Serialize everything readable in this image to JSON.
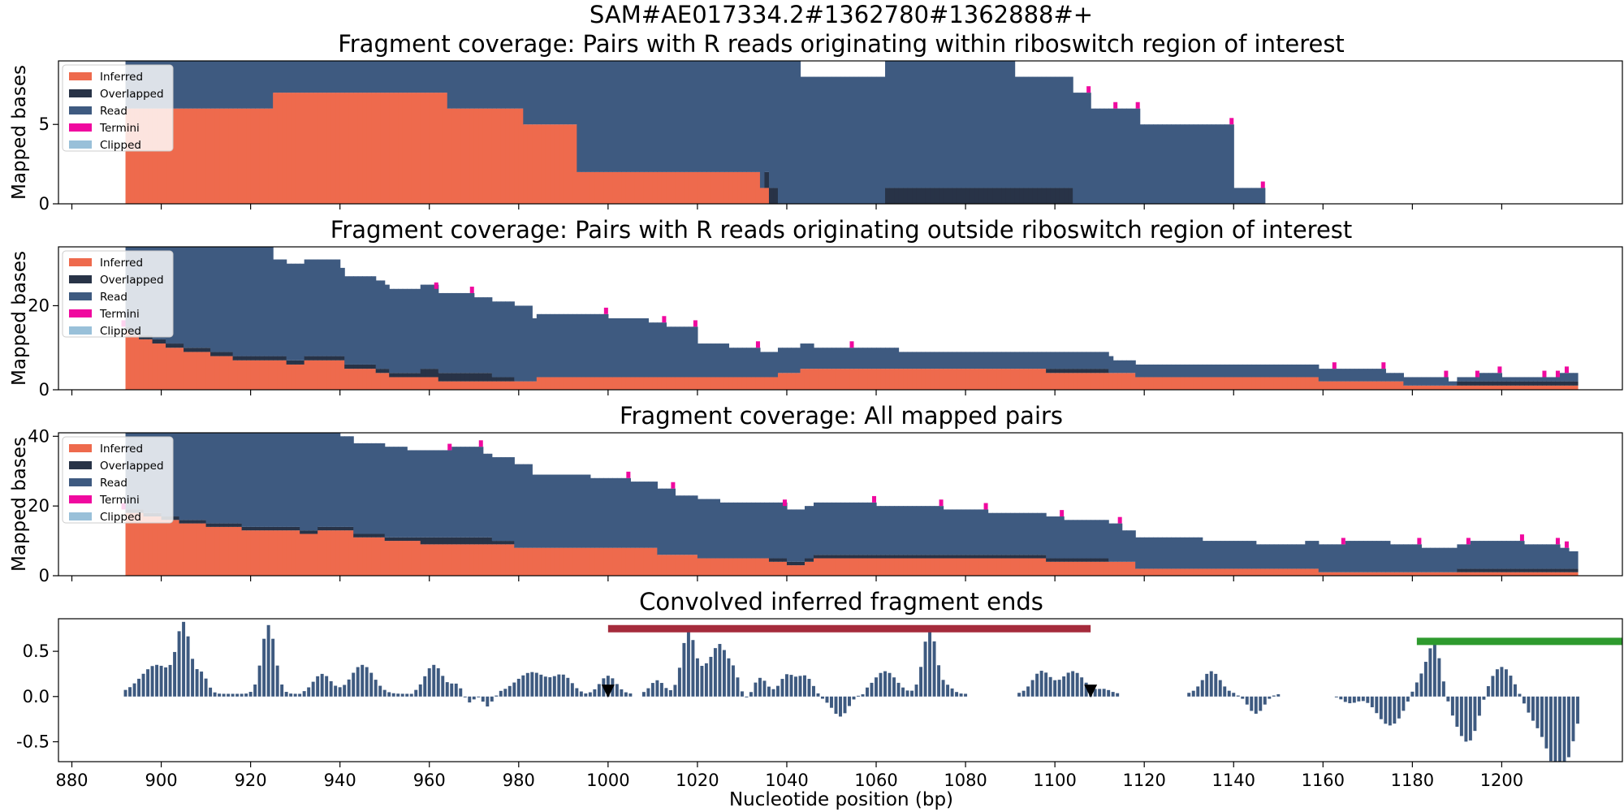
{
  "figure": {
    "suptitle": "SAM#AE017334.2#1362780#1362888#+",
    "xlabel": "Nucleotide position (bp)",
    "xticks": [
      880,
      900,
      920,
      940,
      960,
      980,
      1000,
      1020,
      1040,
      1060,
      1080,
      1100,
      1120,
      1140,
      1160,
      1180,
      1200
    ],
    "xlim": [
      877,
      1227
    ]
  },
  "colors": {
    "inferred": "#ee6a4d",
    "overlapped": "#283347",
    "read": "#3e5a80",
    "termini": "#f0099f",
    "clipped": "#99c0d9",
    "conv_bar": "#3e5a80",
    "region_red": "#a52b3c",
    "region_green": "#2e9a2e"
  },
  "legend": [
    "Inferred",
    "Overlapped",
    "Read",
    "Termini",
    "Clipped"
  ],
  "chart_data": [
    {
      "type": "area",
      "title": "Fragment coverage: Pairs with R reads originating within riboswitch region of interest",
      "ylabel": "Mapped bases",
      "ylim": [
        0,
        9
      ],
      "yticks": [
        0,
        5
      ],
      "legend_position": "upper-left",
      "inferred": [
        [
          892,
          6
        ],
        [
          925,
          7
        ],
        [
          964,
          6
        ],
        [
          981,
          5
        ],
        [
          993,
          2
        ],
        [
          1034,
          1
        ],
        [
          1036,
          0
        ]
      ],
      "overlapped": [
        [
          892,
          0
        ],
        [
          1033,
          0
        ],
        [
          1035,
          1
        ],
        [
          1038,
          0
        ],
        [
          1045,
          0
        ],
        [
          1057,
          0
        ],
        [
          1062,
          1
        ],
        [
          1104,
          0
        ]
      ],
      "read": [
        [
          892,
          7
        ],
        [
          913,
          7
        ],
        [
          968,
          8
        ],
        [
          1005,
          9
        ],
        [
          1032,
          9
        ],
        [
          1043,
          8
        ],
        [
          1091,
          7
        ],
        [
          1108,
          6
        ],
        [
          1114,
          6
        ],
        [
          1119,
          5
        ],
        [
          1140,
          1
        ],
        [
          1147,
          0
        ]
      ],
      "termini_at": [
        968,
        1005,
        1010,
        1035,
        1043,
        1091,
        1108,
        1114,
        1119,
        1140,
        1147
      ]
    },
    {
      "type": "area",
      "title": "Fragment coverage: Pairs with R reads originating outside riboswitch region of interest",
      "ylabel": "Mapped bases",
      "ylim": [
        0,
        34
      ],
      "yticks": [
        0,
        20
      ],
      "legend_position": "upper-left",
      "inferred": [
        [
          892,
          14
        ],
        [
          893,
          13
        ],
        [
          895,
          12
        ],
        [
          898,
          11
        ],
        [
          901,
          10
        ],
        [
          905,
          9
        ],
        [
          911,
          8
        ],
        [
          916,
          7
        ],
        [
          928,
          6
        ],
        [
          932,
          7
        ],
        [
          941,
          5
        ],
        [
          948,
          4
        ],
        [
          951,
          3
        ],
        [
          958,
          3
        ],
        [
          962,
          2
        ],
        [
          974,
          2
        ],
        [
          979,
          2
        ],
        [
          984,
          3
        ],
        [
          1011,
          3
        ],
        [
          1020,
          3
        ],
        [
          1038,
          4
        ],
        [
          1043,
          5
        ],
        [
          1058,
          5
        ],
        [
          1088,
          5
        ],
        [
          1098,
          4
        ],
        [
          1118,
          3
        ],
        [
          1138,
          3
        ],
        [
          1159,
          2
        ],
        [
          1178,
          1
        ],
        [
          1200,
          1
        ],
        [
          1217,
          1
        ],
        [
          1218,
          0
        ]
      ],
      "overlapped": [
        [
          892,
          1
        ],
        [
          935,
          1
        ],
        [
          947,
          1
        ],
        [
          958,
          2
        ],
        [
          970,
          2
        ],
        [
          974,
          1
        ],
        [
          979,
          0
        ],
        [
          1004,
          0
        ],
        [
          1098,
          1
        ],
        [
          1112,
          0
        ],
        [
          1186,
          0
        ],
        [
          1190,
          1
        ],
        [
          1200,
          1
        ],
        [
          1217,
          1
        ],
        [
          1218,
          0
        ]
      ],
      "read": [
        [
          892,
          31
        ],
        [
          895,
          29
        ],
        [
          900,
          27
        ],
        [
          905,
          25
        ],
        [
          912,
          26
        ],
        [
          925,
          23
        ],
        [
          940,
          21
        ],
        [
          950,
          20
        ],
        [
          962,
          19
        ],
        [
          970,
          18
        ],
        [
          983,
          15
        ],
        [
          1000,
          14
        ],
        [
          1009,
          13
        ],
        [
          1013,
          12
        ],
        [
          1020,
          8
        ],
        [
          1027,
          7
        ],
        [
          1034,
          6
        ],
        [
          1046,
          5
        ],
        [
          1055,
          5
        ],
        [
          1065,
          4
        ],
        [
          1079,
          4
        ],
        [
          1096,
          4
        ],
        [
          1113,
          3
        ],
        [
          1139,
          3
        ],
        [
          1154,
          3
        ],
        [
          1163,
          3
        ],
        [
          1174,
          2
        ],
        [
          1185,
          2
        ],
        [
          1188,
          1
        ],
        [
          1195,
          2
        ],
        [
          1200,
          1
        ],
        [
          1210,
          1
        ],
        [
          1213,
          2
        ],
        [
          1215,
          2
        ],
        [
          1217,
          0
        ]
      ],
      "termini_at": [
        892,
        905,
        912,
        925,
        962,
        970,
        1000,
        1013,
        1020,
        1034,
        1055,
        1163,
        1174,
        1188,
        1195,
        1200,
        1210,
        1213,
        1215
      ]
    },
    {
      "type": "area",
      "title": "Fragment coverage: All mapped pairs",
      "ylabel": "Mapped bases",
      "ylim": [
        0,
        41
      ],
      "yticks": [
        0,
        20,
        40
      ],
      "legend_position": "upper-left",
      "inferred": [
        [
          892,
          18
        ],
        [
          896,
          17
        ],
        [
          900,
          16
        ],
        [
          904,
          15
        ],
        [
          910,
          14
        ],
        [
          918,
          13
        ],
        [
          931,
          12
        ],
        [
          935,
          13
        ],
        [
          943,
          11
        ],
        [
          950,
          10
        ],
        [
          958,
          9
        ],
        [
          973,
          9
        ],
        [
          979,
          8
        ],
        [
          1011,
          6
        ],
        [
          1020,
          5
        ],
        [
          1036,
          4
        ],
        [
          1040,
          3
        ],
        [
          1044,
          4
        ],
        [
          1046,
          5
        ],
        [
          1058,
          5
        ],
        [
          1087,
          5
        ],
        [
          1098,
          4
        ],
        [
          1118,
          2
        ],
        [
          1138,
          2
        ],
        [
          1159,
          1
        ],
        [
          1178,
          1
        ],
        [
          1200,
          1
        ],
        [
          1217,
          1
        ],
        [
          1218,
          0
        ]
      ],
      "overlapped": [
        [
          892,
          1
        ],
        [
          935,
          1
        ],
        [
          947,
          1
        ],
        [
          958,
          2
        ],
        [
          970,
          2
        ],
        [
          974,
          1
        ],
        [
          979,
          0
        ],
        [
          1004,
          0
        ],
        [
          1036,
          1
        ],
        [
          1040,
          1
        ],
        [
          1062,
          1
        ],
        [
          1098,
          1
        ],
        [
          1112,
          0
        ],
        [
          1186,
          0
        ],
        [
          1190,
          1
        ],
        [
          1200,
          1
        ],
        [
          1217,
          1
        ],
        [
          1218,
          0
        ]
      ],
      "read": [
        [
          892,
          38
        ],
        [
          895,
          37
        ],
        [
          898,
          35
        ],
        [
          903,
          33
        ],
        [
          915,
          31
        ],
        [
          925,
          28
        ],
        [
          940,
          26
        ],
        [
          955,
          25
        ],
        [
          965,
          26
        ],
        [
          972,
          24
        ],
        [
          983,
          21
        ],
        [
          996,
          20
        ],
        [
          1005,
          19
        ],
        [
          1015,
          17
        ],
        [
          1025,
          16
        ],
        [
          1040,
          15
        ],
        [
          1060,
          14
        ],
        [
          1075,
          13
        ],
        [
          1085,
          12
        ],
        [
          1102,
          11
        ],
        [
          1115,
          9
        ],
        [
          1133,
          8
        ],
        [
          1145,
          7
        ],
        [
          1156,
          8
        ],
        [
          1165,
          9
        ],
        [
          1175,
          8
        ],
        [
          1182,
          7
        ],
        [
          1193,
          8
        ],
        [
          1205,
          7
        ],
        [
          1213,
          6
        ],
        [
          1215,
          5
        ],
        [
          1217,
          0
        ]
      ],
      "termini_at": [
        892,
        898,
        903,
        925,
        965,
        972,
        1005,
        1015,
        1040,
        1060,
        1075,
        1085,
        1102,
        1115,
        1165,
        1182,
        1193,
        1205,
        1213,
        1215
      ]
    },
    {
      "type": "bar",
      "title": "Convolved inferred fragment ends",
      "ylim": [
        -0.72,
        0.86
      ],
      "yticks": [
        -0.5,
        0.0,
        0.5
      ],
      "segments": [
        {
          "start": 892,
          "end": 915,
          "peaks": [
            [
              899,
              0.32,
              3.5
            ],
            [
              905,
              0.72,
              1.5
            ],
            [
              909,
              0.22,
              1.3
            ]
          ]
        },
        {
          "start": 916,
          "end": 931,
          "peaks": [
            [
              924,
              0.76,
              1.5
            ]
          ]
        },
        {
          "start": 932,
          "end": 956,
          "peaks": [
            [
              936,
              0.22,
              2
            ],
            [
              945,
              0.32,
              2.5
            ]
          ]
        },
        {
          "start": 957,
          "end": 975,
          "peaks": [
            [
              961,
              0.32,
              2
            ],
            [
              966,
              0.1,
              1.2
            ],
            [
              969,
              -0.1,
              1
            ],
            [
              973,
              -0.14,
              1
            ]
          ]
        },
        {
          "start": 976,
          "end": 994,
          "peaks": [
            [
              983,
              0.24,
              3.5
            ],
            [
              990,
              0.18,
              2
            ]
          ]
        },
        {
          "start": 995,
          "end": 1005,
          "peaks": [
            [
              1000,
              0.2,
              1.8
            ]
          ]
        },
        {
          "start": 1008,
          "end": 1057,
          "peaks": [
            [
              1011,
              0.15,
              1.5
            ],
            [
              1018,
              0.7,
              1.5
            ],
            [
              1022,
              0.25,
              1.5
            ],
            [
              1025,
              0.5,
              1.5
            ],
            [
              1028,
              0.25,
              1.3
            ],
            [
              1031,
              -0.08,
              1.2
            ],
            [
              1034,
              0.18,
              1.5
            ],
            [
              1040,
              0.2,
              1.5
            ],
            [
              1044,
              0.2,
              1.8
            ],
            [
              1048,
              -0.05,
              1.5
            ],
            [
              1052,
              -0.25,
              1.8
            ]
          ]
        },
        {
          "start": 1058,
          "end": 1080,
          "peaks": [
            [
              1062,
              0.25,
              2.5
            ],
            [
              1072,
              0.72,
              1.5
            ],
            [
              1076,
              0.08,
              1.2
            ]
          ]
        },
        {
          "start": 1092,
          "end": 1114,
          "peaks": [
            [
              1097,
              0.25,
              2
            ],
            [
              1104,
              0.25,
              2.5
            ],
            [
              1111,
              0.05,
              1.5
            ]
          ]
        },
        {
          "start": 1130,
          "end": 1140,
          "peaks": [
            [
              1135,
              0.25,
              2
            ]
          ]
        },
        {
          "start": 1141,
          "end": 1150,
          "peaks": [
            [
              1145,
              -0.22,
              1.8
            ]
          ]
        },
        {
          "start": 1163,
          "end": 1217,
          "peaks": [
            [
              1166,
              -0.1,
              2
            ],
            [
              1175,
              -0.35,
              3
            ],
            [
              1182,
              0.18,
              2
            ],
            [
              1185,
              0.5,
              1.5
            ],
            [
              1190,
              -0.22,
              2
            ],
            [
              1193,
              -0.45,
              2
            ],
            [
              1200,
              0.3,
              2.5
            ],
            [
              1208,
              -0.3,
              2.5
            ],
            [
              1212,
              -0.6,
              2
            ],
            [
              1215,
              -0.5,
              2
            ]
          ]
        }
      ],
      "regions": [
        {
          "start": 1000,
          "end": 1108,
          "y": 0.75,
          "color": "region_red"
        },
        {
          "start": 1181,
          "end": 1227,
          "y": 0.61,
          "color": "region_green"
        }
      ],
      "markers": [
        {
          "x": 1000,
          "y": 0.06
        },
        {
          "x": 1108,
          "y": 0.06
        }
      ]
    }
  ]
}
